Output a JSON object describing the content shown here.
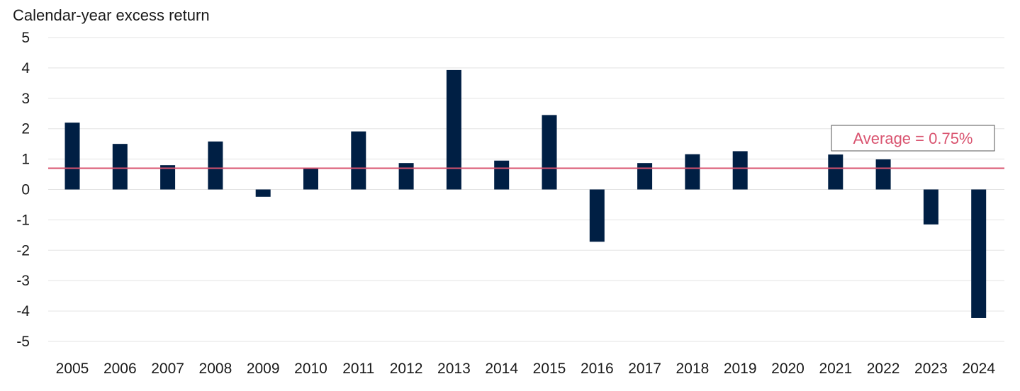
{
  "chart_data": {
    "type": "bar",
    "ylabel": "Calendar-year excess return",
    "categories": [
      "2005",
      "2006",
      "2007",
      "2008",
      "2009",
      "2010",
      "2011",
      "2012",
      "2013",
      "2014",
      "2015",
      "2016",
      "2017",
      "2018",
      "2019",
      "2020",
      "2021",
      "2022",
      "2023",
      "2024"
    ],
    "values": [
      2.2,
      1.5,
      0.8,
      1.58,
      -0.24,
      0.68,
      1.91,
      0.87,
      3.93,
      0.95,
      2.45,
      -1.72,
      0.87,
      1.16,
      1.26,
      0.0,
      1.15,
      0.99,
      -1.15,
      -4.23
    ],
    "ylim": [
      -5,
      5
    ],
    "yticks": [
      "5",
      "4",
      "3",
      "2",
      "1",
      "0",
      "-1",
      "-2",
      "-3",
      "-4",
      "-5"
    ],
    "grid": true,
    "average": {
      "value": 0.7,
      "label": "Average = 0.75%"
    },
    "colors": {
      "bar": "#001f44",
      "average": "#d9536f",
      "grid": "#e3e3e3",
      "label_box_border": "#555555"
    }
  }
}
